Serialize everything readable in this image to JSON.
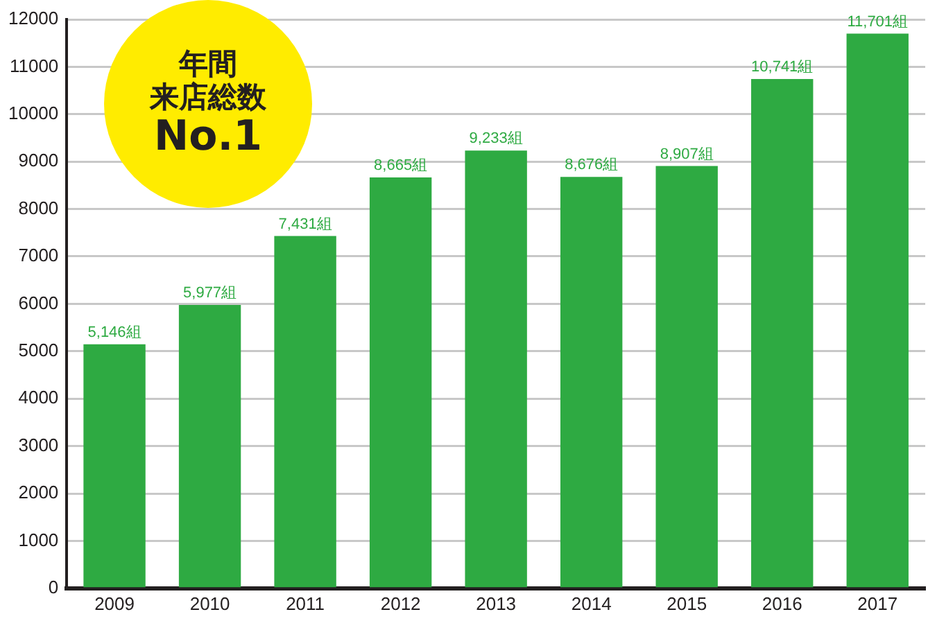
{
  "chart_data": {
    "type": "bar",
    "categories": [
      "2009",
      "2010",
      "2011",
      "2012",
      "2013",
      "2014",
      "2015",
      "2016",
      "2017"
    ],
    "values": [
      5146,
      5977,
      7431,
      8665,
      9233,
      8676,
      8907,
      10741,
      11701
    ],
    "value_labels": [
      "5,146組",
      "5,977組",
      "7,431組",
      "8,665組",
      "9,233組",
      "8,676組",
      "8,907組",
      "10,741組",
      "11,701組"
    ],
    "color": "#2eaa42",
    "ylim": [
      0,
      12000
    ],
    "yticks": [
      0,
      1000,
      2000,
      3000,
      4000,
      5000,
      6000,
      7000,
      8000,
      9000,
      10000,
      11000,
      12000
    ],
    "grid": "y",
    "legend": false,
    "annotations": [
      "年間",
      "来店総数",
      "No.1"
    ]
  }
}
